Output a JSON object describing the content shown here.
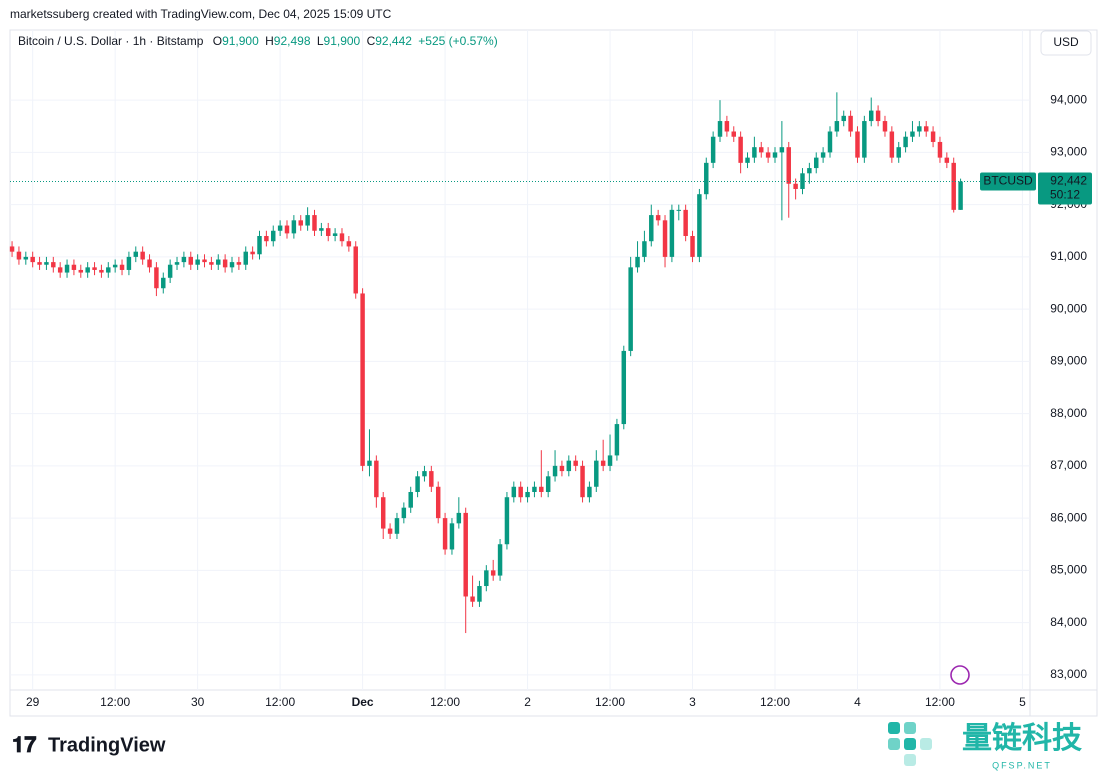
{
  "chart_data": {
    "type": "candlestick",
    "attribution": "marketssuberg created with TradingView.com, Dec 04, 2025 15:09 UTC",
    "title": "Bitcoin / U.S. Dollar · 1h · Bitstamp",
    "legend": {
      "o_label": "O",
      "open": "91,900",
      "h_label": "H",
      "high": "92,498",
      "l_label": "L",
      "low": "91,900",
      "c_label": "C",
      "close": "92,442",
      "change": "+525 (+0.57%)"
    },
    "currency": "USD",
    "last_price": {
      "symbol": "BTCUSD",
      "price": "92,442",
      "countdown": "50:12"
    },
    "up_color": "#089981",
    "down_color": "#f23645",
    "grid": true,
    "x": [
      0,
      1,
      2,
      3,
      4,
      5,
      6,
      7,
      8,
      9,
      10,
      11,
      12,
      13,
      14,
      15,
      16,
      17,
      18,
      19,
      20,
      21,
      22,
      23,
      24,
      25,
      26,
      27,
      28,
      29,
      30,
      31,
      32,
      33,
      34,
      35,
      36,
      37,
      38,
      39,
      40,
      41,
      42,
      43,
      44,
      45,
      46,
      47,
      48,
      49,
      50,
      51,
      52,
      53,
      54,
      55,
      56,
      57,
      58,
      59,
      60,
      61,
      62,
      63,
      64,
      65,
      66,
      67,
      68,
      69,
      70,
      71,
      72,
      73,
      74,
      75,
      76,
      77,
      78,
      79,
      80,
      81,
      82,
      83,
      84,
      85,
      86,
      87,
      88,
      89,
      90,
      91,
      92,
      93,
      94,
      95,
      96,
      97,
      98,
      99,
      100,
      101,
      102,
      103,
      104,
      105,
      106,
      107,
      108,
      109,
      110,
      111,
      112,
      113,
      114,
      115,
      116,
      117,
      118,
      119,
      120,
      121,
      122,
      123,
      124,
      125,
      126,
      127,
      128,
      129,
      130,
      131,
      132,
      133,
      134,
      135,
      136,
      137,
      138
    ],
    "open": [
      91200,
      91100,
      90950,
      91000,
      90900,
      90850,
      90900,
      90800,
      90700,
      90850,
      90750,
      90700,
      90800,
      90750,
      90700,
      90800,
      90850,
      90750,
      91000,
      91100,
      90950,
      90800,
      90400,
      90600,
      90850,
      90900,
      91000,
      90850,
      90950,
      90900,
      90850,
      90950,
      90800,
      90900,
      90850,
      91100,
      91050,
      91400,
      91300,
      91500,
      91600,
      91450,
      91700,
      91600,
      91800,
      91500,
      91550,
      91400,
      91450,
      91300,
      91200,
      90300,
      87000,
      87100,
      86400,
      85800,
      85700,
      86000,
      86200,
      86500,
      86800,
      86900,
      86600,
      86000,
      85400,
      85900,
      86100,
      84500,
      84400,
      84700,
      85000,
      84900,
      85500,
      86400,
      86600,
      86400,
      86500,
      86600,
      86500,
      86800,
      87000,
      86900,
      87100,
      87000,
      86400,
      86600,
      87100,
      87000,
      87200,
      87800,
      89200,
      90800,
      91000,
      91300,
      91800,
      91700,
      91000,
      91900,
      91900,
      91400,
      91000,
      92200,
      92800,
      93300,
      93600,
      93400,
      93300,
      92800,
      92900,
      93100,
      93000,
      92900,
      93000,
      93100,
      92400,
      92300,
      92600,
      92700,
      92900,
      93000,
      93400,
      93600,
      93700,
      93400,
      92900,
      93600,
      93800,
      93600,
      93400,
      92900,
      93100,
      93300,
      93400,
      93500,
      93400,
      93200,
      92900,
      92800,
      91900
    ],
    "high": [
      91300,
      91200,
      91100,
      91100,
      91000,
      91000,
      91000,
      90900,
      90950,
      90950,
      90850,
      90900,
      90900,
      90850,
      90900,
      90950,
      90950,
      91100,
      91200,
      91200,
      91050,
      90900,
      90700,
      90950,
      91000,
      91100,
      91100,
      91050,
      91050,
      91000,
      91050,
      91050,
      91000,
      91000,
      91200,
      91200,
      91500,
      91500,
      91600,
      91700,
      91700,
      91800,
      91800,
      91950,
      91900,
      91650,
      91650,
      91550,
      91550,
      91400,
      91300,
      90400,
      87700,
      87200,
      86500,
      85900,
      86100,
      86300,
      86600,
      86900,
      87000,
      87000,
      86700,
      86100,
      86000,
      86400,
      86200,
      84900,
      84800,
      85100,
      85200,
      85600,
      86500,
      86700,
      86700,
      86600,
      86700,
      87300,
      86900,
      87300,
      87100,
      87200,
      87200,
      87100,
      86700,
      87300,
      87500,
      87600,
      87900,
      89300,
      91000,
      91300,
      91500,
      92000,
      91900,
      91800,
      92000,
      92000,
      92000,
      91500,
      92300,
      92900,
      93400,
      94000,
      93700,
      93500,
      93400,
      93000,
      93300,
      93200,
      93100,
      93100,
      93600,
      93200,
      92500,
      92700,
      92800,
      93000,
      93100,
      93500,
      94150,
      93800,
      93800,
      93500,
      93700,
      94050,
      93900,
      93700,
      93500,
      93200,
      93400,
      93600,
      93600,
      93600,
      93500,
      93300,
      93000,
      92900,
      92498
    ],
    "low": [
      91000,
      90850,
      90850,
      90800,
      90750,
      90750,
      90700,
      90600,
      90600,
      90650,
      90600,
      90600,
      90650,
      90600,
      90600,
      90700,
      90650,
      90650,
      90900,
      90850,
      90700,
      90250,
      90300,
      90500,
      90750,
      90800,
      90750,
      90750,
      90800,
      90750,
      90750,
      90700,
      90700,
      90750,
      90750,
      90950,
      90950,
      91200,
      91200,
      91400,
      91350,
      91350,
      91500,
      91500,
      91400,
      91400,
      91300,
      91300,
      91200,
      91100,
      90200,
      86900,
      86800,
      86200,
      85600,
      85600,
      85600,
      85900,
      86100,
      86400,
      86700,
      86500,
      85900,
      85300,
      85300,
      85800,
      83800,
      84300,
      84300,
      84600,
      84800,
      84800,
      85400,
      86300,
      86300,
      86300,
      86400,
      86400,
      86400,
      86700,
      86800,
      86800,
      86900,
      86300,
      86300,
      86500,
      86900,
      86900,
      87100,
      87700,
      89100,
      90700,
      90900,
      91200,
      91600,
      90800,
      90900,
      91700,
      91300,
      90900,
      90900,
      92100,
      92700,
      93200,
      93300,
      93200,
      92600,
      92700,
      92800,
      92900,
      92800,
      92800,
      91700,
      91750,
      92100,
      92200,
      92400,
      92600,
      92800,
      92900,
      93300,
      93500,
      93300,
      92800,
      92800,
      93500,
      93500,
      93300,
      92800,
      92800,
      93000,
      93200,
      93300,
      93300,
      93100,
      92800,
      92700,
      91850,
      91900
    ],
    "close": [
      91100,
      90950,
      91000,
      90900,
      90850,
      90900,
      90800,
      90700,
      90850,
      90750,
      90700,
      90800,
      90750,
      90700,
      90800,
      90850,
      90750,
      91000,
      91100,
      90950,
      90800,
      90400,
      90600,
      90850,
      90900,
      91000,
      90850,
      90950,
      90900,
      90850,
      90950,
      90800,
      90900,
      90850,
      91100,
      91050,
      91400,
      91300,
      91500,
      91600,
      91450,
      91700,
      91600,
      91800,
      91500,
      91550,
      91400,
      91450,
      91300,
      91200,
      90300,
      87000,
      87100,
      86400,
      85800,
      85700,
      86000,
      86200,
      86500,
      86800,
      86900,
      86600,
      86000,
      85400,
      85900,
      86100,
      84500,
      84400,
      84700,
      85000,
      84900,
      85500,
      86400,
      86600,
      86400,
      86500,
      86600,
      86500,
      86800,
      87000,
      86900,
      87100,
      87000,
      86400,
      86600,
      87100,
      87000,
      87200,
      87800,
      89200,
      90800,
      91000,
      91300,
      91800,
      91700,
      91000,
      91900,
      91900,
      91400,
      91000,
      92200,
      92800,
      93300,
      93600,
      93400,
      93300,
      92800,
      92900,
      93100,
      93000,
      92900,
      93000,
      93100,
      92400,
      92300,
      92600,
      92700,
      92900,
      93000,
      93400,
      93600,
      93700,
      93400,
      92900,
      93600,
      93800,
      93600,
      93400,
      92900,
      93100,
      93300,
      93400,
      93500,
      93400,
      93200,
      92900,
      92800,
      91900,
      92442
    ],
    "xlim": [
      -0.3,
      148.1
    ],
    "xticks": [
      {
        "value": 3,
        "label": "29"
      },
      {
        "value": 15,
        "label": "12:00"
      },
      {
        "value": 27,
        "label": "30"
      },
      {
        "value": 39,
        "label": "12:00"
      },
      {
        "value": 51,
        "label": "Dec"
      },
      {
        "value": 63,
        "label": "12:00"
      },
      {
        "value": 75,
        "label": "2"
      },
      {
        "value": 87,
        "label": "12:00"
      },
      {
        "value": 99,
        "label": "3"
      },
      {
        "value": 111,
        "label": "12:00"
      },
      {
        "value": 123,
        "label": "4"
      },
      {
        "value": 135,
        "label": "12:00"
      },
      {
        "value": 147,
        "label": "5"
      }
    ],
    "ylim": [
      82710,
      94960
    ],
    "yticks": [
      {
        "value": 83000,
        "label": "83,000"
      },
      {
        "value": 84000,
        "label": "84,000"
      },
      {
        "value": 85000,
        "label": "85,000"
      },
      {
        "value": 86000,
        "label": "86,000"
      },
      {
        "value": 87000,
        "label": "87,000"
      },
      {
        "value": 88000,
        "label": "88,000"
      },
      {
        "value": 89000,
        "label": "89,000"
      },
      {
        "value": 90000,
        "label": "90,000"
      },
      {
        "value": 91000,
        "label": "91,000"
      },
      {
        "value": 92000,
        "label": "92,000"
      },
      {
        "value": 93000,
        "label": "93,000"
      },
      {
        "value": 94000,
        "label": "94,000"
      }
    ]
  },
  "branding": {
    "logo": "TradingView",
    "watermark": "量链科技",
    "watermark_sub": "QFSP.NET"
  }
}
